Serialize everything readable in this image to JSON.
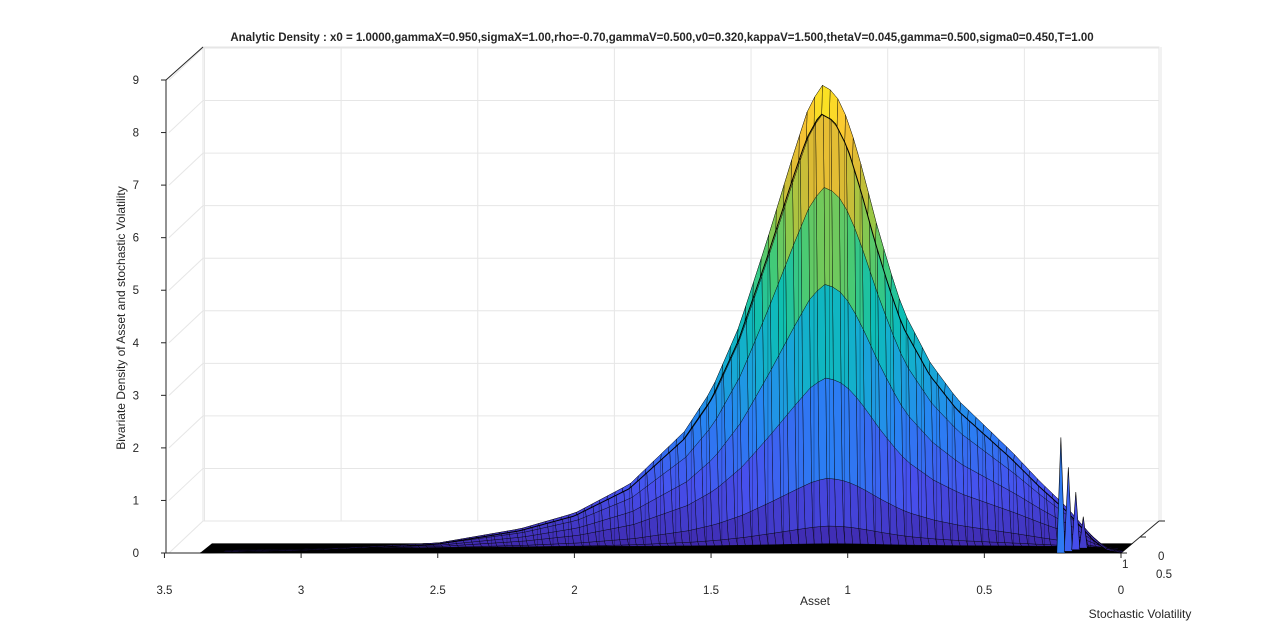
{
  "chart_data": {
    "type": "surface",
    "title": "Analytic Density : x0 = 1.0000,gammaX=0.950,sigmaX=1.00,rho=-0.70,gammaV=0.500,v0=0.320,kappaV=1.500,thetaV=0.045,gamma=0.500,sigma0=0.450,T=1.00",
    "xlabel": "Asset",
    "ylabel": "Stochastic Volatility",
    "zlabel": "Bivariate Density of Asset and stochastic Volatility",
    "x_ticks": [
      "3.5",
      "3",
      "2.5",
      "2",
      "1.5",
      "1",
      "0.5",
      "0"
    ],
    "y_ticks": [
      "0",
      "0.5",
      "1"
    ],
    "z_ticks": [
      "0",
      "1",
      "2",
      "3",
      "4",
      "5",
      "6",
      "7",
      "8",
      "9"
    ],
    "xlim": [
      0,
      3.5
    ],
    "ylim": [
      0,
      1
    ],
    "zlim": [
      0,
      9
    ],
    "grid": true,
    "colormap": "parula",
    "peak": {
      "asset": 1.1,
      "density": 8.9
    },
    "ridge_profile": {
      "asset": [
        3.4,
        3.0,
        2.5,
        2.2,
        2.0,
        1.8,
        1.6,
        1.5,
        1.4,
        1.3,
        1.2,
        1.15,
        1.1,
        1.05,
        1.0,
        0.95,
        0.9,
        0.85,
        0.8,
        0.7,
        0.6,
        0.5,
        0.4,
        0.3,
        0.2,
        0.15,
        0.1,
        0.05,
        0.0
      ],
      "density": [
        0.0,
        0.04,
        0.18,
        0.45,
        0.75,
        1.3,
        2.3,
        3.1,
        4.3,
        5.9,
        7.6,
        8.4,
        8.9,
        8.75,
        8.2,
        7.3,
        6.3,
        5.4,
        4.6,
        3.6,
        2.9,
        2.4,
        1.9,
        1.35,
        0.85,
        0.55,
        0.25,
        0.05,
        0.0
      ]
    },
    "boundary_spikes": {
      "asset": [
        0.22,
        0.2,
        0.18,
        0.16
      ],
      "density": [
        2.2,
        1.6,
        1.1,
        0.6
      ]
    }
  }
}
